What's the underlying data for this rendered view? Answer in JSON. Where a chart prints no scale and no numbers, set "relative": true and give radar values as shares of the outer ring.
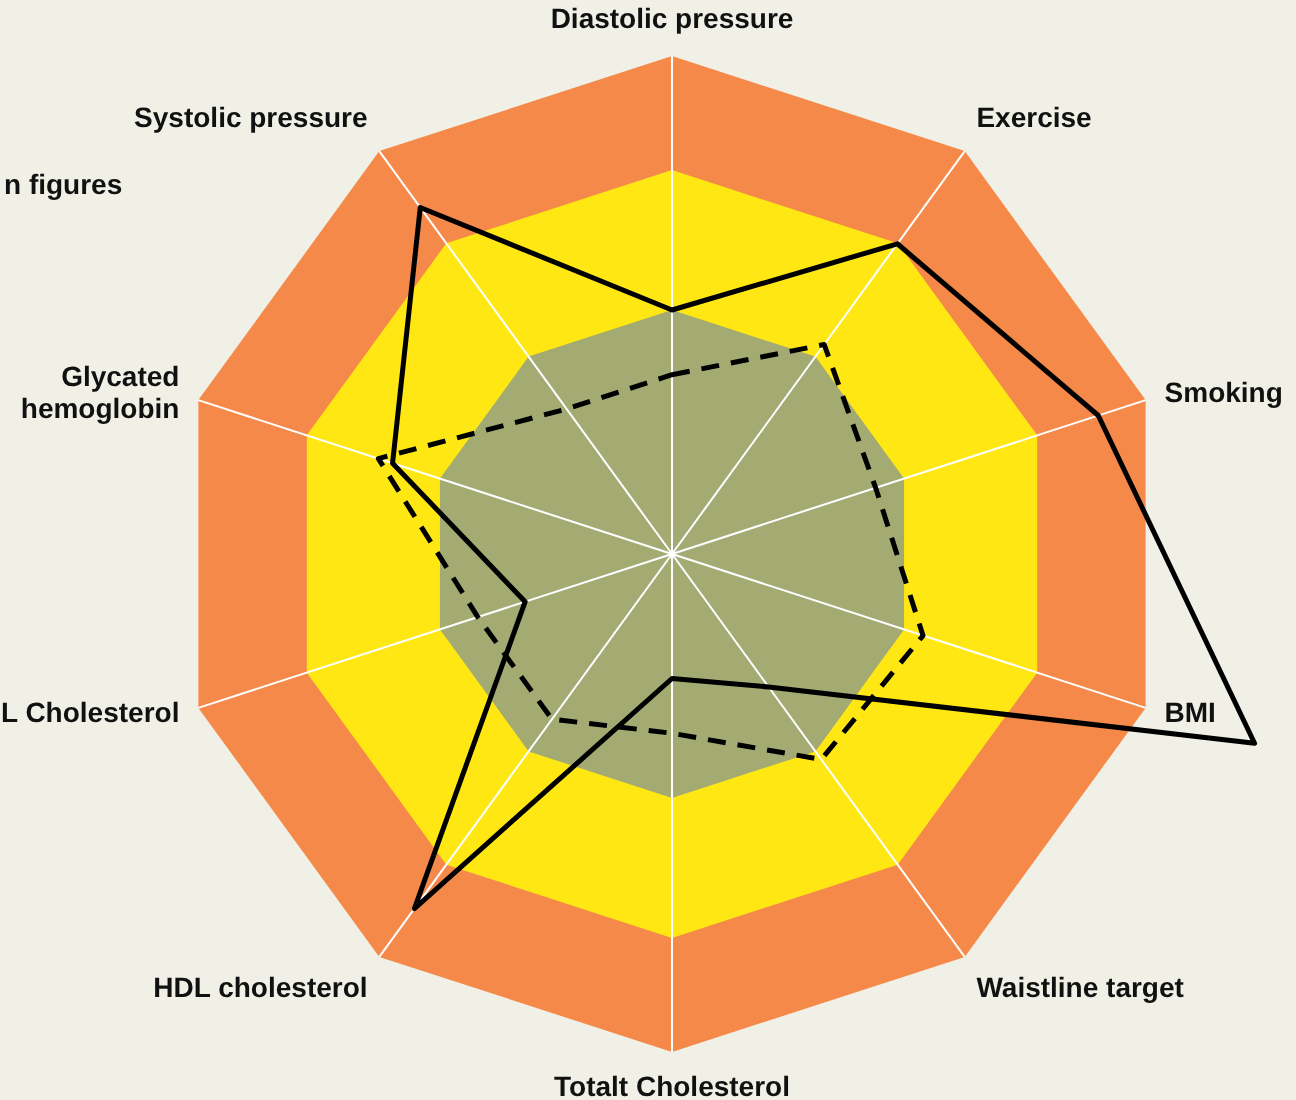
{
  "chart_data": {
    "type": "radar",
    "relative": true,
    "categories": [
      "Diastolic pressure",
      "Exercise",
      "Smoking",
      "BMI",
      "Waistline target",
      "Totalt Cholesterol",
      "HDL cholesterol",
      "L Cholesterol",
      "Glycated hemoglobin",
      "Systolic pressure"
    ],
    "series": [
      {
        "color": "#000000",
        "line_style": "solid",
        "values": [
          0.49,
          0.77,
          0.9,
          1.23,
          0.33,
          0.25,
          0.88,
          0.31,
          0.59,
          0.86
        ]
      },
      {
        "color": "#000000",
        "line_style": "dashed",
        "values": [
          0.36,
          0.52,
          0.43,
          0.53,
          0.51,
          0.36,
          0.41,
          0.41,
          0.62,
          0.36
        ]
      }
    ],
    "grid": true,
    "marker": "none",
    "legend": false,
    "annotations": [
      "n figures"
    ]
  }
}
